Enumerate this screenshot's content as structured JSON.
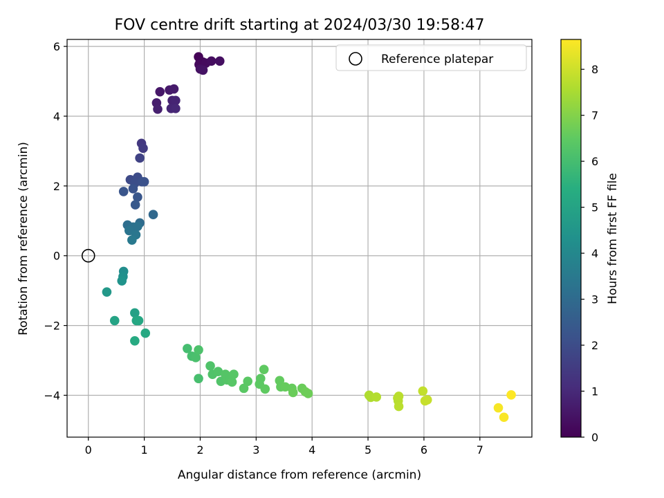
{
  "chart_data": {
    "type": "scatter",
    "title": "FOV centre drift starting at 2024/03/30 19:58:47",
    "xlabel": "Angular distance from reference (arcmin)",
    "ylabel": "Rotation from reference (arcmin)",
    "xlim": [
      -0.38,
      7.93
    ],
    "ylim": [
      -5.2,
      6.2
    ],
    "xticks": [
      0,
      1,
      2,
      3,
      4,
      5,
      6,
      7
    ],
    "yticks": [
      -4,
      -2,
      0,
      2,
      4,
      6
    ],
    "grid": true,
    "legend": {
      "placement": "top-right",
      "entries": [
        "Reference platepar"
      ]
    },
    "reference": {
      "x": 0,
      "y": 0,
      "label": "Reference platepar"
    },
    "colorbar": {
      "label": "Hours from first FF file",
      "range": [
        0,
        8.65
      ],
      "ticks": [
        0,
        1,
        2,
        3,
        4,
        5,
        6,
        7,
        8
      ],
      "colormap": "viridis"
    },
    "series": [
      {
        "points": [
          [
            1.97,
            5.7,
            0.05
          ],
          [
            2.0,
            5.58,
            0.1
          ],
          [
            2.05,
            5.55,
            0.15
          ],
          [
            1.98,
            5.48,
            0.2
          ],
          [
            2.1,
            5.52,
            0.25
          ],
          [
            2.2,
            5.58,
            0.3
          ],
          [
            2.35,
            5.58,
            0.35
          ],
          [
            2.0,
            5.35,
            0.4
          ],
          [
            2.05,
            5.32,
            0.45
          ],
          [
            1.28,
            4.7,
            0.55
          ],
          [
            1.45,
            4.75,
            0.6
          ],
          [
            1.53,
            4.78,
            0.65
          ],
          [
            1.22,
            4.38,
            0.7
          ],
          [
            1.24,
            4.2,
            0.75
          ],
          [
            1.5,
            4.45,
            0.8
          ],
          [
            1.56,
            4.45,
            0.85
          ],
          [
            1.48,
            4.22,
            0.9
          ],
          [
            1.56,
            4.22,
            0.95
          ],
          [
            0.95,
            3.22,
            1.4
          ],
          [
            0.98,
            3.08,
            1.5
          ],
          [
            0.92,
            2.8,
            1.7
          ],
          [
            0.75,
            2.18,
            1.9
          ],
          [
            0.8,
            2.15,
            1.95
          ],
          [
            0.88,
            2.25,
            2.0
          ],
          [
            0.83,
            2.08,
            2.05
          ],
          [
            0.96,
            2.12,
            2.1
          ],
          [
            1.0,
            2.12,
            2.15
          ],
          [
            0.8,
            1.92,
            2.2
          ],
          [
            0.63,
            1.84,
            2.25
          ],
          [
            0.88,
            1.68,
            2.3
          ],
          [
            0.84,
            1.46,
            2.4
          ],
          [
            1.16,
            1.18,
            2.9
          ],
          [
            0.92,
            0.94,
            3.0
          ],
          [
            0.7,
            0.88,
            3.1
          ],
          [
            0.8,
            0.82,
            3.2
          ],
          [
            0.88,
            0.84,
            3.25
          ],
          [
            0.73,
            0.72,
            3.3
          ],
          [
            0.85,
            0.6,
            3.4
          ],
          [
            0.78,
            0.45,
            3.5
          ],
          [
            0.63,
            -0.45,
            4.2
          ],
          [
            0.62,
            -0.6,
            4.3
          ],
          [
            0.6,
            -0.72,
            4.4
          ],
          [
            0.33,
            -1.04,
            4.6
          ],
          [
            0.83,
            -1.64,
            4.9
          ],
          [
            0.47,
            -1.86,
            5.0
          ],
          [
            0.86,
            -1.86,
            5.1
          ],
          [
            0.9,
            -1.86,
            5.15
          ],
          [
            1.02,
            -2.22,
            5.2
          ],
          [
            0.83,
            -2.44,
            5.25
          ],
          [
            1.77,
            -2.66,
            6.0
          ],
          [
            1.85,
            -2.88,
            6.05
          ],
          [
            1.92,
            -2.92,
            6.1
          ],
          [
            1.97,
            -2.7,
            6.15
          ],
          [
            1.97,
            -3.52,
            6.05
          ],
          [
            2.18,
            -3.16,
            6.2
          ],
          [
            2.22,
            -3.4,
            6.2
          ],
          [
            2.32,
            -3.32,
            6.25
          ],
          [
            2.37,
            -3.6,
            6.25
          ],
          [
            2.45,
            -3.4,
            6.3
          ],
          [
            2.48,
            -3.56,
            6.3
          ],
          [
            2.53,
            -3.5,
            6.3
          ],
          [
            2.57,
            -3.62,
            6.35
          ],
          [
            2.6,
            -3.4,
            6.35
          ],
          [
            2.78,
            -3.8,
            6.4
          ],
          [
            2.85,
            -3.6,
            6.4
          ],
          [
            3.06,
            -3.68,
            6.45
          ],
          [
            3.08,
            -3.52,
            6.45
          ],
          [
            3.14,
            -3.26,
            6.5
          ],
          [
            3.16,
            -3.82,
            6.5
          ],
          [
            3.42,
            -3.58,
            6.55
          ],
          [
            3.44,
            -3.76,
            6.55
          ],
          [
            3.52,
            -3.76,
            6.6
          ],
          [
            3.64,
            -3.8,
            6.6
          ],
          [
            3.66,
            -3.92,
            6.65
          ],
          [
            3.82,
            -3.8,
            6.65
          ],
          [
            3.88,
            -3.9,
            6.7
          ],
          [
            3.93,
            -3.95,
            6.7
          ],
          [
            5.02,
            -4.0,
            7.6
          ],
          [
            5.05,
            -4.06,
            7.6
          ],
          [
            5.15,
            -4.05,
            7.65
          ],
          [
            5.53,
            -4.08,
            7.7
          ],
          [
            5.54,
            -4.16,
            7.7
          ],
          [
            5.55,
            -4.03,
            7.75
          ],
          [
            5.55,
            -4.32,
            7.75
          ],
          [
            5.98,
            -3.88,
            7.85
          ],
          [
            6.02,
            -4.16,
            7.9
          ],
          [
            6.06,
            -4.13,
            7.9
          ],
          [
            7.33,
            -4.36,
            8.55
          ],
          [
            7.43,
            -4.63,
            8.6
          ],
          [
            7.56,
            -3.99,
            8.65
          ]
        ]
      }
    ]
  }
}
